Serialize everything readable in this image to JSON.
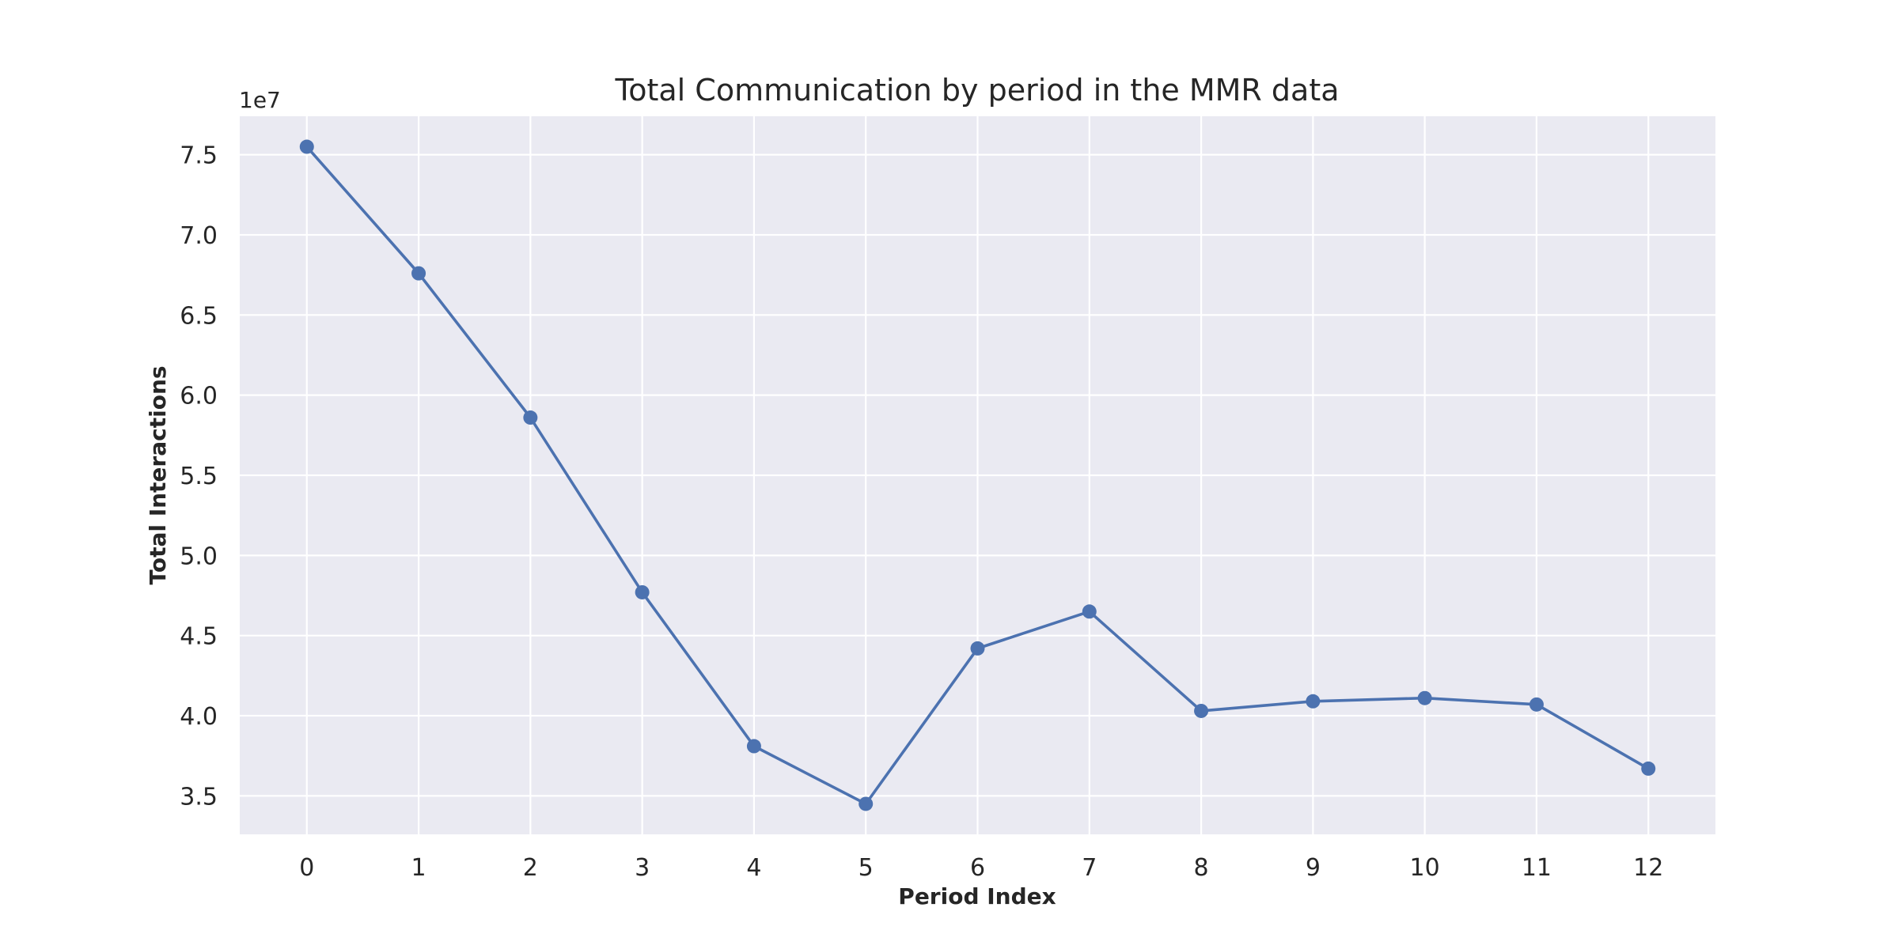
{
  "chart_data": {
    "type": "line",
    "title": "Total Communication by period in the MMR data",
    "xlabel": "Period Index",
    "ylabel": "Total Interactions",
    "y_offset_label": "1e7",
    "x": [
      0,
      1,
      2,
      3,
      4,
      5,
      6,
      7,
      8,
      9,
      10,
      11,
      12
    ],
    "x_tick_labels": [
      "0",
      "1",
      "2",
      "3",
      "4",
      "5",
      "6",
      "7",
      "8",
      "9",
      "10",
      "11",
      "12"
    ],
    "y_ticks": [
      3.5,
      4.0,
      4.5,
      5.0,
      5.5,
      6.0,
      6.5,
      7.0,
      7.5
    ],
    "y_tick_labels": [
      "3.5",
      "4.0",
      "4.5",
      "5.0",
      "5.5",
      "6.0",
      "6.5",
      "7.0",
      "7.5"
    ],
    "xlim": [
      -0.6,
      12.6
    ],
    "ylim": [
      3.26,
      7.74
    ],
    "y_scale_factor": 10000000,
    "series": [
      {
        "values": [
          7.55,
          6.76,
          5.86,
          4.77,
          3.81,
          3.45,
          4.42,
          4.65,
          4.03,
          4.09,
          4.11,
          4.07,
          3.67
        ]
      }
    ],
    "grid": true,
    "legend": "none",
    "colors": {
      "line": "#4c72b0",
      "plot_background": "#eaeaf2",
      "grid": "#ffffff",
      "text": "#262626"
    },
    "marker": "circle"
  }
}
